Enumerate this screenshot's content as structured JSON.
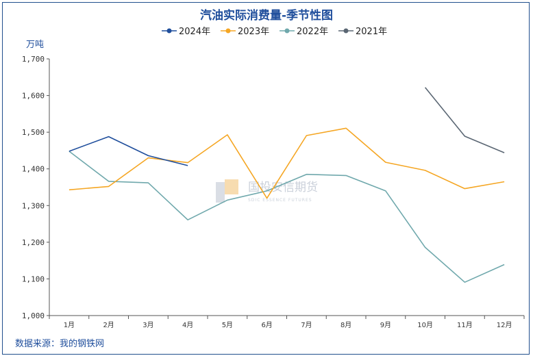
{
  "chart_data": {
    "type": "line",
    "title": "汽油实际消费量-季节性图",
    "ylabel": "万吨",
    "ylim": [
      1000,
      1700
    ],
    "yticks": [
      1000,
      1100,
      1200,
      1300,
      1400,
      1500,
      1600,
      1700
    ],
    "ytick_labels": [
      "1,000",
      "1,100",
      "1,200",
      "1,300",
      "1,400",
      "1,500",
      "1,600",
      "1,700"
    ],
    "categories": [
      "1月",
      "2月",
      "3月",
      "4月",
      "5月",
      "6月",
      "7月",
      "8月",
      "9月",
      "10月",
      "11月",
      "12月"
    ],
    "legend_position": "top",
    "grid": false,
    "series": [
      {
        "name": "2024年",
        "color": "#1f4e9c",
        "values": [
          1448,
          1488,
          1436,
          1409,
          null,
          null,
          null,
          null,
          null,
          null,
          null,
          null
        ]
      },
      {
        "name": "2023年",
        "color": "#f5a623",
        "values": [
          1343,
          1352,
          1430,
          1417,
          1493,
          1320,
          1491,
          1511,
          1418,
          1396,
          1346,
          1365
        ]
      },
      {
        "name": "2022年",
        "color": "#6fa8ac",
        "values": [
          1448,
          1366,
          1362,
          1261,
          1315,
          1340,
          1385,
          1382,
          1340,
          1186,
          1091,
          1139
        ]
      },
      {
        "name": "2021年",
        "color": "#5a6673",
        "values": [
          null,
          null,
          null,
          null,
          null,
          null,
          null,
          null,
          null,
          1622,
          1489,
          1444
        ]
      }
    ]
  },
  "source": "数据来源：我的钢铁网",
  "watermark": {
    "name": "国投安信期货",
    "sub": "SDIC ESSENCE FUTURES"
  }
}
